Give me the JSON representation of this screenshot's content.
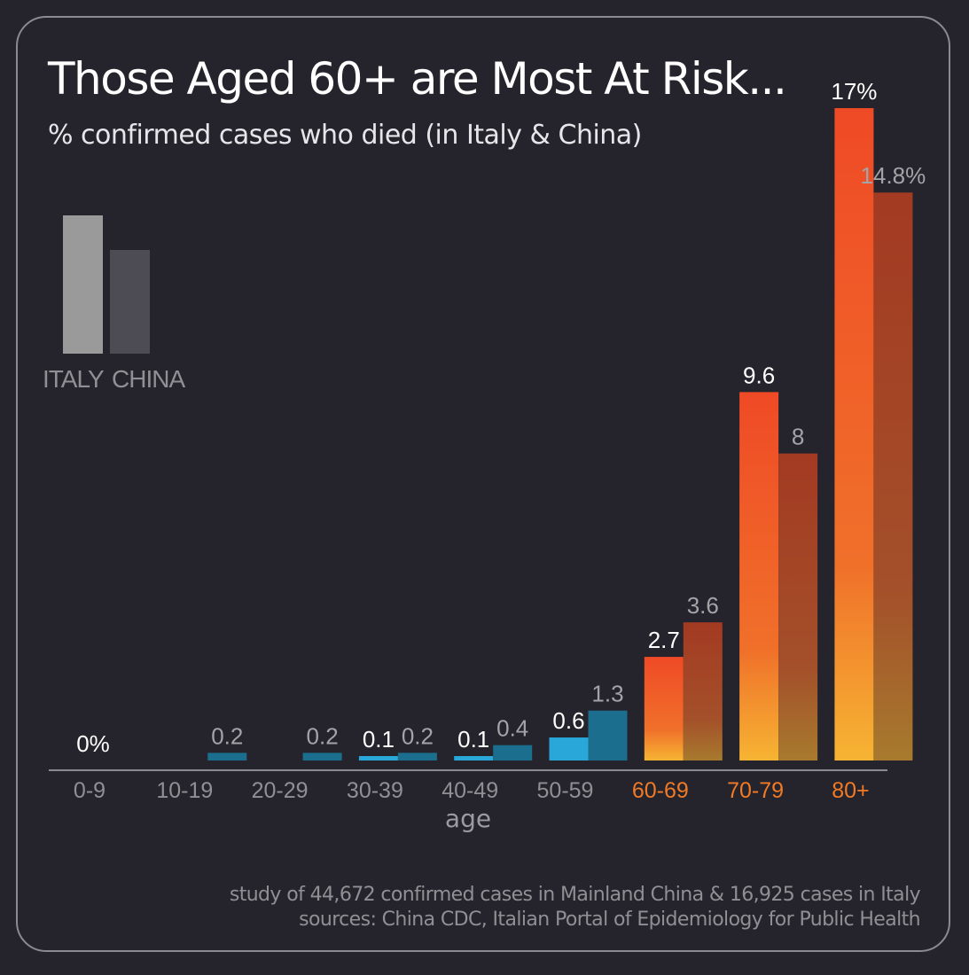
{
  "title": "Those Aged 60+ are Most At Risk...",
  "subtitle": "% confirmed cases who died (in Italy & China)",
  "legend": {
    "italy": "ITALY",
    "china": "CHINA"
  },
  "footer": {
    "line1": "study of 44,672 confirmed cases in Mainland China & 16,925 cases in Italy",
    "line2": "sources:  China CDC, Italian Portal of Epidemiology for Public Health"
  },
  "colors": {
    "background": "#25242c",
    "low_risk_italy": "#29a7d8",
    "low_risk_china": "#1b6e8e",
    "high_risk_top_italy": "#ef4a26",
    "high_risk_bottom_italy": "#f6b433",
    "high_risk_top_china": "#a33a22",
    "high_risk_bottom_china": "#a77a2d",
    "highlight_tick": "#f07a26"
  },
  "chart_data": {
    "type": "bar",
    "xlabel": "age",
    "ylabel": "",
    "ylim": [
      0,
      17
    ],
    "categories": [
      "0-9",
      "10-19",
      "20-29",
      "30-39",
      "40-49",
      "50-59",
      "60-69",
      "70-79",
      "80+"
    ],
    "highlighted_categories": [
      "60-69",
      "70-79",
      "80+"
    ],
    "series": [
      {
        "name": "ITALY",
        "values": [
          0,
          0,
          0,
          0.1,
          0.1,
          0.6,
          2.7,
          9.6,
          17
        ],
        "labels": [
          "0%",
          "",
          "",
          "0.1",
          "0.1",
          "0.6",
          "2.7",
          "9.6",
          "17%"
        ]
      },
      {
        "name": "CHINA",
        "values": [
          0,
          0.2,
          0.2,
          0.2,
          0.4,
          1.3,
          3.6,
          8,
          14.8
        ],
        "labels": [
          "",
          "0.2",
          "0.2",
          "0.2",
          "0.4",
          "1.3",
          "3.6",
          "8",
          "14.8%"
        ]
      }
    ]
  }
}
